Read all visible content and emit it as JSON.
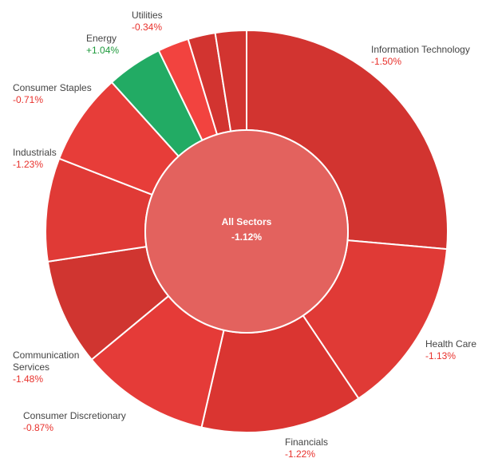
{
  "chart_data": {
    "type": "pie",
    "variant": "donut",
    "center": {
      "label": "All Sectors",
      "value": "-1.12%",
      "color": "#e3625e"
    },
    "slices": [
      {
        "name": "Information Technology",
        "change": "-1.50%",
        "weight": 26.4,
        "color": "#d23430"
      },
      {
        "name": "Health Care",
        "change": "-1.13%",
        "weight": 14.2,
        "color": "#e03a36"
      },
      {
        "name": "Financials",
        "change": "-1.22%",
        "weight": 13.0,
        "color": "#da3531"
      },
      {
        "name": "Consumer Discretionary",
        "change": "-0.87%",
        "weight": 10.4,
        "color": "#e53b38"
      },
      {
        "name": "Communication Services",
        "change": "-1.48%",
        "weight": 8.6,
        "color": "#d03530"
      },
      {
        "name": "Industrials",
        "change": "-1.23%",
        "weight": 8.3,
        "color": "#e03a36"
      },
      {
        "name": "Consumer Staples",
        "change": "-0.71%",
        "weight": 7.4,
        "color": "#e73d39"
      },
      {
        "name": "Energy",
        "change": "+1.04%",
        "weight": 4.5,
        "color": "#22ab64"
      },
      {
        "name": "Utilities",
        "change": "-0.34%",
        "weight": 2.5,
        "color": "#f2433f"
      },
      {
        "name": "",
        "change": "",
        "weight": 2.2,
        "color": "#d23430"
      },
      {
        "name": "",
        "change": "",
        "weight": 2.5,
        "color": "#d23430"
      }
    ]
  }
}
